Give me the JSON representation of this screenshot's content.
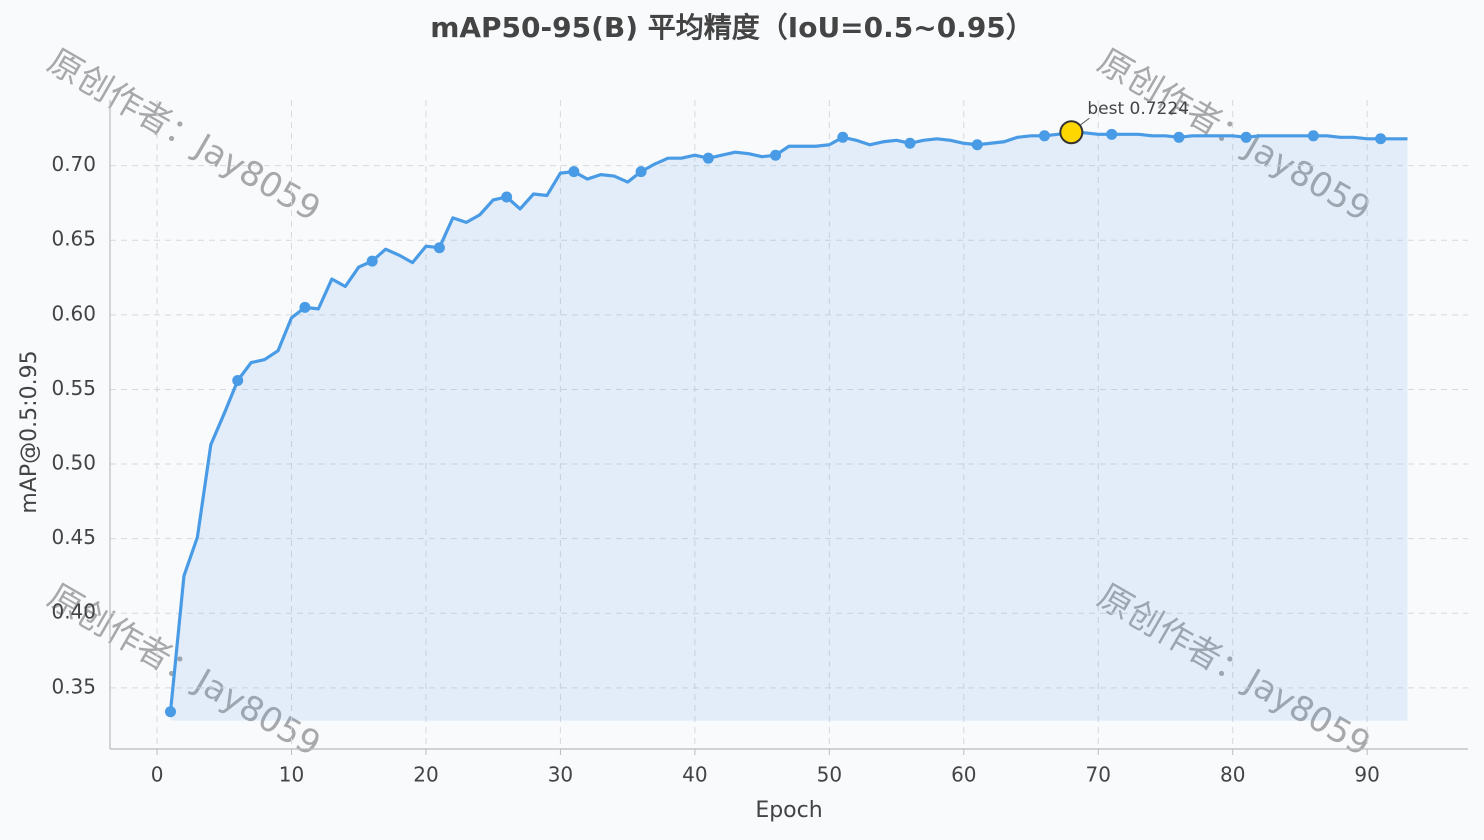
{
  "chart_data": {
    "type": "line",
    "title": "mAP50-95(B) 平均精度（IoU=0.5~0.95）",
    "xlabel": "Epoch",
    "ylabel": "mAP@0.5:0.95",
    "x": [
      1,
      2,
      3,
      4,
      5,
      6,
      7,
      8,
      9,
      10,
      11,
      12,
      13,
      14,
      15,
      16,
      17,
      18,
      19,
      20,
      21,
      22,
      23,
      24,
      25,
      26,
      27,
      28,
      29,
      30,
      31,
      32,
      33,
      34,
      35,
      36,
      37,
      38,
      39,
      40,
      41,
      42,
      43,
      44,
      45,
      46,
      47,
      48,
      49,
      50,
      51,
      52,
      53,
      54,
      55,
      56,
      57,
      58,
      59,
      60,
      61,
      62,
      63,
      64,
      65,
      66,
      67,
      68,
      69,
      70,
      71,
      72,
      73,
      74,
      75,
      76,
      77,
      78,
      79,
      80,
      81,
      82,
      83,
      84,
      85,
      86,
      87,
      88,
      89,
      90,
      91,
      92,
      93
    ],
    "series": [
      {
        "name": "mAP50-95(B)",
        "color": "#4a9be6",
        "values": [
          0.334,
          0.425,
          0.451,
          0.513,
          0.534,
          0.556,
          0.568,
          0.57,
          0.576,
          0.598,
          0.605,
          0.604,
          0.624,
          0.619,
          0.632,
          0.636,
          0.644,
          0.64,
          0.635,
          0.646,
          0.645,
          0.665,
          0.662,
          0.667,
          0.677,
          0.679,
          0.671,
          0.681,
          0.68,
          0.695,
          0.696,
          0.691,
          0.694,
          0.693,
          0.689,
          0.696,
          0.701,
          0.705,
          0.705,
          0.707,
          0.705,
          0.707,
          0.709,
          0.708,
          0.706,
          0.707,
          0.713,
          0.713,
          0.713,
          0.714,
          0.719,
          0.717,
          0.714,
          0.716,
          0.717,
          0.715,
          0.717,
          0.718,
          0.717,
          0.715,
          0.714,
          0.715,
          0.716,
          0.719,
          0.72,
          0.72,
          0.721,
          0.7224,
          0.722,
          0.721,
          0.721,
          0.721,
          0.721,
          0.72,
          0.72,
          0.719,
          0.72,
          0.72,
          0.72,
          0.72,
          0.719,
          0.72,
          0.72,
          0.72,
          0.72,
          0.72,
          0.72,
          0.719,
          0.719,
          0.718,
          0.718,
          0.718,
          0.718
        ]
      }
    ],
    "markevery": 5,
    "fill_to": 0.328,
    "best": {
      "x": 68,
      "value": 0.7224,
      "label": "best 0.7224",
      "color": "#ffd700"
    },
    "watermark": "原创作者：Jay8059",
    "xlim": [
      -3.5,
      97.5
    ],
    "ylim": [
      0.309,
      0.744
    ],
    "xticks": [
      0,
      10,
      20,
      30,
      40,
      50,
      60,
      70,
      80,
      90
    ],
    "yticks": [
      0.35,
      {
        "value": 0.4,
        "label": "0.40"
      },
      0.45,
      {
        "value": 0.5,
        "label": "0.50"
      },
      0.55,
      {
        "value": 0.6,
        "label": "0.60"
      },
      0.65,
      {
        "value": 0.7,
        "label": "0.70"
      }
    ],
    "grid": true
  }
}
